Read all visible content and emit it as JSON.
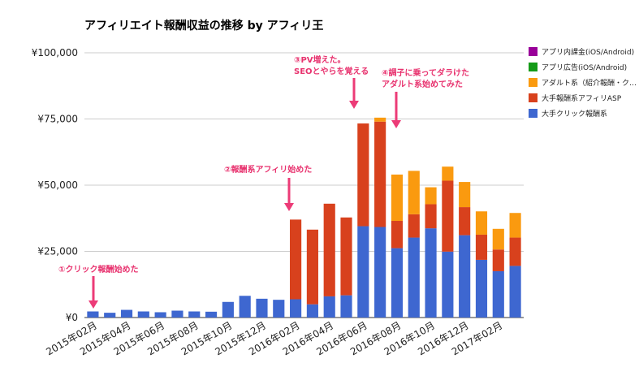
{
  "chart_data": {
    "type": "bar",
    "stacked": true,
    "title": "アフィリエイト報酬収益の推移 by アフィリ王",
    "xlabel": "",
    "ylabel": "",
    "ylim": [
      0,
      100000
    ],
    "yticks": [
      0,
      25000,
      50000,
      75000,
      100000
    ],
    "ytick_labels": [
      "¥0",
      "¥25,000",
      "¥50,000",
      "¥75,000",
      "¥100,000"
    ],
    "grid": true,
    "legend_position": "right",
    "categories": [
      "2015年02月",
      "2015年03月",
      "2015年04月",
      "2015年05月",
      "2015年06月",
      "2015年07月",
      "2015年08月",
      "2015年09月",
      "2015年10月",
      "2015年11月",
      "2015年12月",
      "2016年01月",
      "2016年02月",
      "2016年03月",
      "2016年04月",
      "2016年05月",
      "2016年06月",
      "2016年07月",
      "2016年08月",
      "2016年09月",
      "2016年10月",
      "2016年11月",
      "2016年12月",
      "2017年01月",
      "2017年02月",
      "2017年03月"
    ],
    "x_tick_labels": [
      "2015年02月",
      "2015年04月",
      "2015年06月",
      "2015年08月",
      "2015年10月",
      "2015年12月",
      "2016年02月",
      "2016年04月",
      "2016年06月",
      "2016年08月",
      "2016年10月",
      "2016年12月",
      "2017年02月"
    ],
    "series": [
      {
        "name": "大手クリック報酬系",
        "color": "#3e67d0",
        "values": [
          2300,
          1800,
          2900,
          2300,
          2000,
          2600,
          2300,
          2200,
          5900,
          8200,
          7100,
          6700,
          6900,
          5000,
          8000,
          8400,
          34500,
          34200,
          26200,
          30200,
          33700,
          24900,
          31100,
          21800,
          17500,
          19500
        ]
      },
      {
        "name": "大手報酬系アフィリASP",
        "color": "#d8411d",
        "values": [
          0,
          0,
          0,
          0,
          0,
          0,
          0,
          0,
          0,
          0,
          0,
          0,
          30100,
          28200,
          35000,
          29400,
          38800,
          39800,
          10300,
          8800,
          9100,
          26800,
          10600,
          9500,
          8200,
          10700
        ]
      },
      {
        "name": "アダルト系（紹介報酬・ク…",
        "color": "#fa9a0f",
        "values": [
          0,
          0,
          0,
          0,
          0,
          0,
          0,
          0,
          0,
          0,
          0,
          0,
          0,
          0,
          0,
          0,
          0,
          1500,
          17500,
          16400,
          6400,
          5300,
          9500,
          8800,
          7800,
          9300
        ]
      },
      {
        "name": "アプリ広告(iOS/Android)",
        "color": "#149a18",
        "values": [
          0,
          0,
          0,
          0,
          0,
          0,
          0,
          0,
          0,
          0,
          0,
          0,
          0,
          0,
          0,
          0,
          0,
          0,
          0,
          0,
          0,
          0,
          0,
          0,
          0,
          0
        ]
      },
      {
        "name": "アプリ内課金(iOS/Android)",
        "color": "#990099",
        "values": [
          0,
          0,
          0,
          0,
          0,
          0,
          0,
          0,
          0,
          0,
          0,
          0,
          0,
          0,
          0,
          0,
          0,
          0,
          0,
          0,
          0,
          0,
          0,
          0,
          0,
          0
        ]
      }
    ],
    "legend_order": [
      "アプリ内課金(iOS/Android)",
      "アプリ広告(iOS/Android)",
      "アダルト系（紹介報酬・ク…",
      "大手報酬系アフィリASP",
      "大手クリック報酬系"
    ],
    "annotations": [
      {
        "lines": [
          "①クリック報酬始めた"
        ],
        "category": "2015年02月"
      },
      {
        "lines": [
          "②報酬系アフィリ始めた"
        ],
        "category": "2016年01月"
      },
      {
        "lines": [
          "③PV増えた。",
          "SEOとやらを覚える"
        ],
        "category": "2016年05月"
      },
      {
        "lines": [
          "④調子に乗ってダラけた",
          "アダルト系始めてみた"
        ],
        "category": "2016年07月"
      }
    ]
  }
}
